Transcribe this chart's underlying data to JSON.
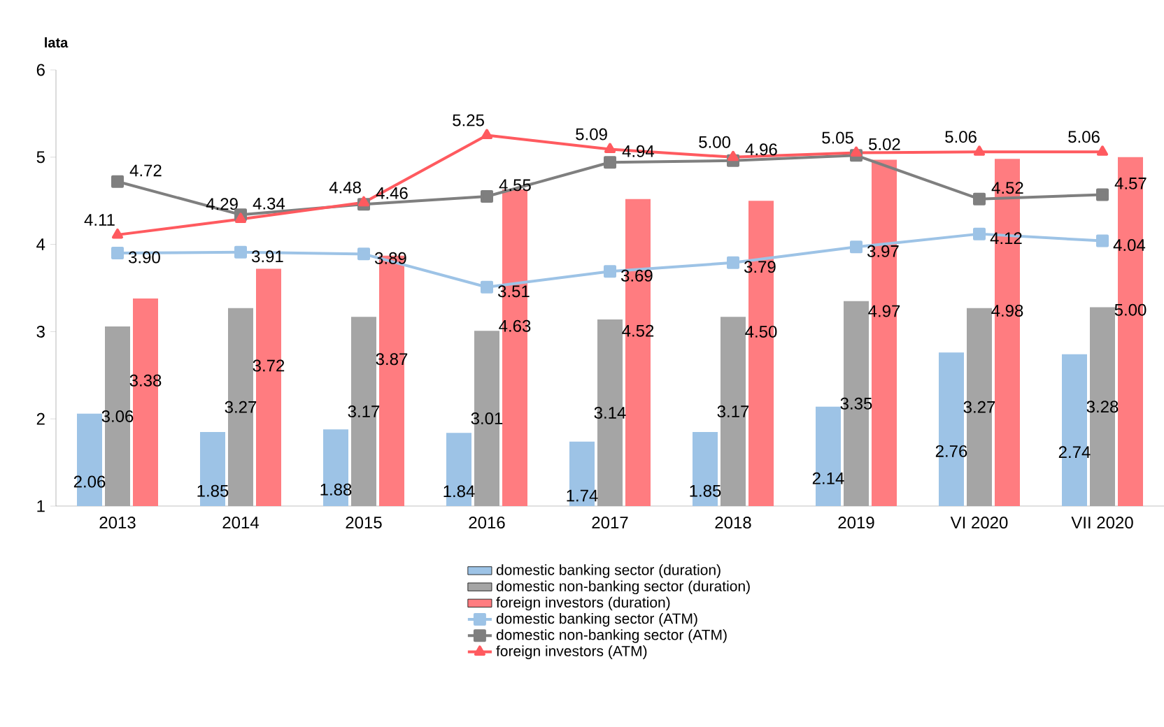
{
  "chart_data": {
    "type": "bar",
    "ylabel": "lata",
    "categories": [
      "2013",
      "2014",
      "2015",
      "2016",
      "2017",
      "2018",
      "2019",
      "VI 2020",
      "VII 2020"
    ],
    "ylim": [
      1,
      6
    ],
    "yticks": [
      1,
      2,
      3,
      4,
      5,
      6
    ],
    "grid": false,
    "legend": "bottom",
    "data_labels": true,
    "series": [
      {
        "name": "domestic banking sector (duration)",
        "color": "#9dc3e6",
        "values": [
          2.06,
          1.85,
          1.88,
          1.84,
          1.74,
          1.85,
          2.14,
          2.76,
          2.74
        ],
        "value_labels": [
          "2.06",
          "1.85",
          "1.88",
          "1.84",
          "1.74",
          "1.85",
          "2.14",
          "2.76",
          "2.74"
        ]
      },
      {
        "name": "domestic non-banking sector (duration)",
        "color": "#a5a5a5",
        "values": [
          3.06,
          3.27,
          3.17,
          3.01,
          3.14,
          3.17,
          3.35,
          3.27,
          3.28
        ],
        "value_labels": [
          "3.06",
          "3.27",
          "3.17",
          "3.01",
          "3.14",
          "3.17",
          "3.35",
          "3.27",
          "3.28"
        ]
      },
      {
        "name": "foreign investors (duration)",
        "color": "#ff7c80",
        "values": [
          3.38,
          3.72,
          3.87,
          4.63,
          4.52,
          4.5,
          4.97,
          4.98,
          5.0
        ],
        "value_labels": [
          "3.38",
          "3.72",
          "3.87",
          "4.63",
          "4.52",
          "4.50",
          "4.97",
          "4.98",
          "5.00"
        ]
      },
      {
        "name": "domestic banking sector (ATM)",
        "type": "line",
        "marker": "square",
        "color": "#9dc3e6",
        "values": [
          3.9,
          3.91,
          3.89,
          3.51,
          3.69,
          3.79,
          3.97,
          4.12,
          4.04
        ],
        "value_labels": [
          "3.90",
          "3.91",
          "3.89",
          "3.51",
          "3.69",
          "3.79",
          "3.97",
          "4.12",
          "4.04"
        ]
      },
      {
        "name": "domestic non-banking sector (ATM)",
        "type": "line",
        "marker": "square",
        "color": "#7f7f7f",
        "values": [
          4.72,
          4.34,
          4.46,
          4.55,
          4.94,
          4.96,
          5.02,
          4.52,
          4.57
        ],
        "value_labels": [
          "4.72",
          "4.34",
          "4.46",
          "4.55",
          "4.94",
          "4.96",
          "5.02",
          "4.52",
          "4.57"
        ]
      },
      {
        "name": "foreign investors (ATM)",
        "type": "line",
        "marker": "triangle",
        "color": "#ff5a5f",
        "values": [
          4.11,
          4.29,
          4.48,
          5.25,
          5.09,
          5.0,
          5.05,
          5.06,
          5.06
        ],
        "value_labels": [
          "4.11",
          "4.29",
          "4.48",
          "5.25",
          "5.09",
          "5.00",
          "5.05",
          "5.06",
          "5.06"
        ]
      }
    ]
  }
}
